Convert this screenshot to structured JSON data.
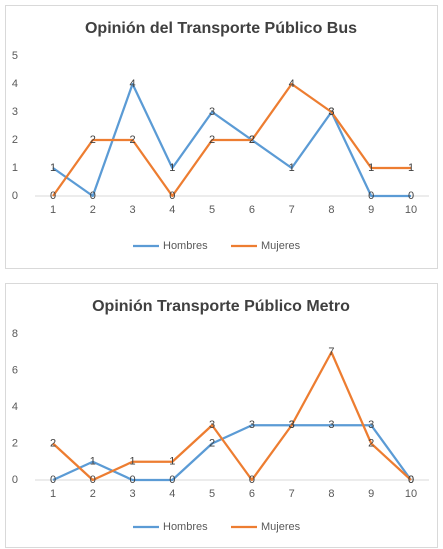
{
  "chart_data": [
    {
      "type": "line",
      "title": "Opinión del Transporte Público Bus",
      "categories": [
        "1",
        "2",
        "3",
        "4",
        "5",
        "6",
        "7",
        "8",
        "9",
        "10"
      ],
      "series": [
        {
          "name": "Hombres",
          "color": "#5b9bd5",
          "values": [
            1,
            0,
            4,
            1,
            3,
            2,
            1,
            3,
            0,
            0
          ]
        },
        {
          "name": "Mujeres",
          "color": "#ed7d31",
          "values": [
            0,
            2,
            2,
            0,
            2,
            2,
            4,
            3,
            1,
            1
          ]
        }
      ],
      "ylim": [
        0,
        5
      ],
      "yticks": [
        0,
        1,
        2,
        3,
        4,
        5
      ],
      "grid": false,
      "legend": "bottom"
    },
    {
      "type": "line",
      "title": "Opinión Transporte Público Metro",
      "categories": [
        "1",
        "2",
        "3",
        "4",
        "5",
        "6",
        "7",
        "8",
        "9",
        "10"
      ],
      "series": [
        {
          "name": "Hombres",
          "color": "#5b9bd5",
          "values": [
            0,
            1,
            0,
            0,
            2,
            3,
            3,
            3,
            3,
            0
          ]
        },
        {
          "name": "Mujeres",
          "color": "#ed7d31",
          "values": [
            2,
            0,
            1,
            1,
            3,
            0,
            3,
            7,
            2,
            0
          ]
        }
      ],
      "ylim": [
        0,
        8
      ],
      "yticks": [
        0,
        2,
        4,
        6,
        8
      ],
      "grid": false,
      "legend": "bottom"
    }
  ]
}
